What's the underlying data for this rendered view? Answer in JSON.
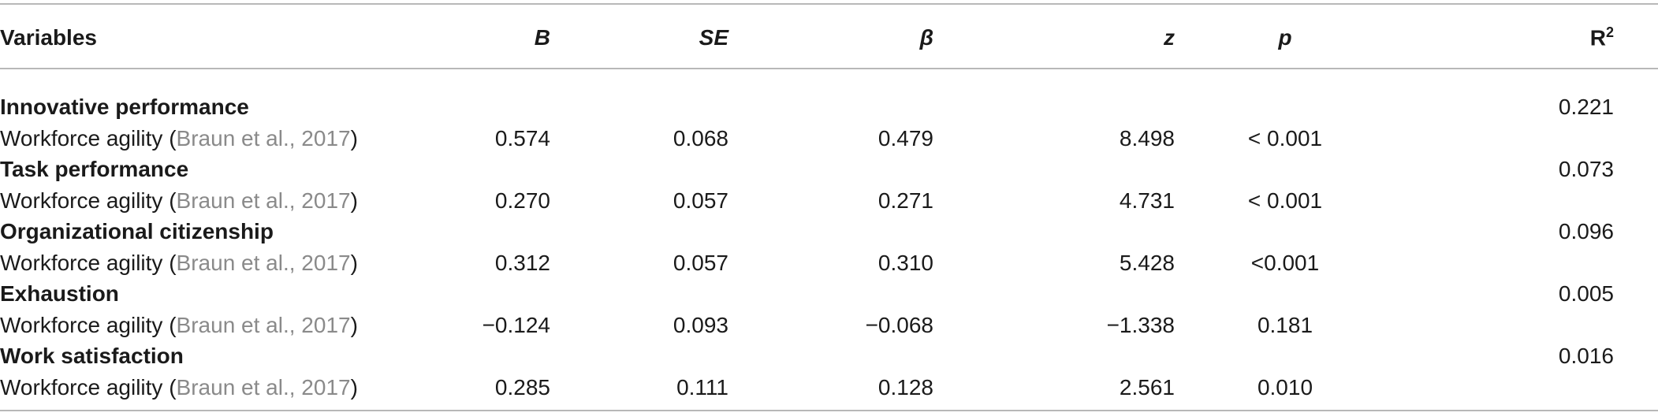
{
  "table": {
    "headers": {
      "variables": "Variables",
      "b": "B",
      "se": "SE",
      "beta": "β",
      "z": "z",
      "p": "p",
      "r2_base": "R",
      "r2_sup": "2"
    },
    "groups": [
      {
        "name": "Innovative performance",
        "r2": "0.221",
        "row": {
          "label": "Workforce agility (",
          "cite": "Braun et al., 2017",
          "close": ")",
          "b": "0.574",
          "se": "0.068",
          "beta": "0.479",
          "z": "8.498",
          "p": "< 0.001"
        }
      },
      {
        "name": "Task performance",
        "r2": "0.073",
        "row": {
          "label": "Workforce agility (",
          "cite": "Braun et al., 2017",
          "close": ")",
          "b": "0.270",
          "se": "0.057",
          "beta": "0.271",
          "z": "4.731",
          "p": "< 0.001"
        }
      },
      {
        "name": "Organizational citizenship",
        "r2": "0.096",
        "row": {
          "label": "Workforce agility (",
          "cite": "Braun et al., 2017",
          "close": ")",
          "b": "0.312",
          "se": "0.057",
          "beta": "0.310",
          "z": "5.428",
          "p": "<0.001"
        }
      },
      {
        "name": "Exhaustion",
        "r2": "0.005",
        "row": {
          "label": "Workforce agility (",
          "cite": "Braun et al., 2017",
          "close": ")",
          "b": "−0.124",
          "se": "0.093",
          "beta": "−0.068",
          "z": "−1.338",
          "p": "0.181"
        }
      },
      {
        "name": "Work satisfaction",
        "r2": "0.016",
        "row": {
          "label": "Workforce agility (",
          "cite": "Braun et al., 2017",
          "close": ")",
          "b": "0.285",
          "se": "0.111",
          "beta": "0.128",
          "z": "2.561",
          "p": "0.010"
        }
      }
    ]
  }
}
